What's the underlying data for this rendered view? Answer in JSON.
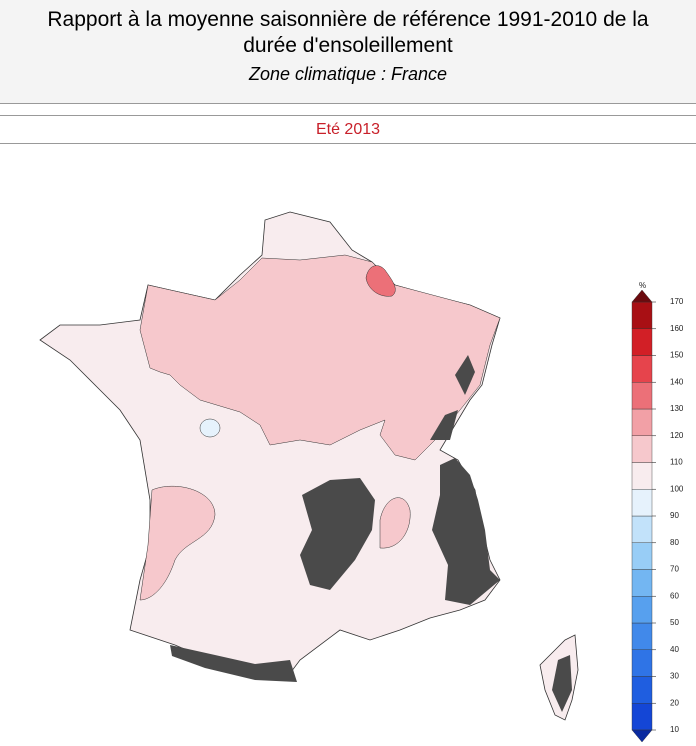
{
  "header": {
    "title_lines": [
      "Rapport à la moyenne saisonnière de référence 1991-2010 de la",
      "durée d'ensoleillement"
    ],
    "subtitle": "Zone climatique : France"
  },
  "period": "Eté 2013",
  "legend": {
    "unit": "%",
    "ticks": [
      10,
      20,
      30,
      40,
      50,
      60,
      70,
      80,
      90,
      100,
      110,
      120,
      130,
      140,
      150,
      160,
      170
    ],
    "colors": [
      "#1446d6",
      "#1f5ee0",
      "#2f74e6",
      "#4189ea",
      "#57a0ee",
      "#73b6f2",
      "#98cdf6",
      "#c2e2fa",
      "#e6f2fc",
      "#f8ecee",
      "#f6c8cc",
      "#f2a0a6",
      "#ec7078",
      "#e6444c",
      "#d21f26",
      "#a80f14"
    ],
    "under_color": "#0a2aa0",
    "over_color": "#6b0a0e"
  }
}
